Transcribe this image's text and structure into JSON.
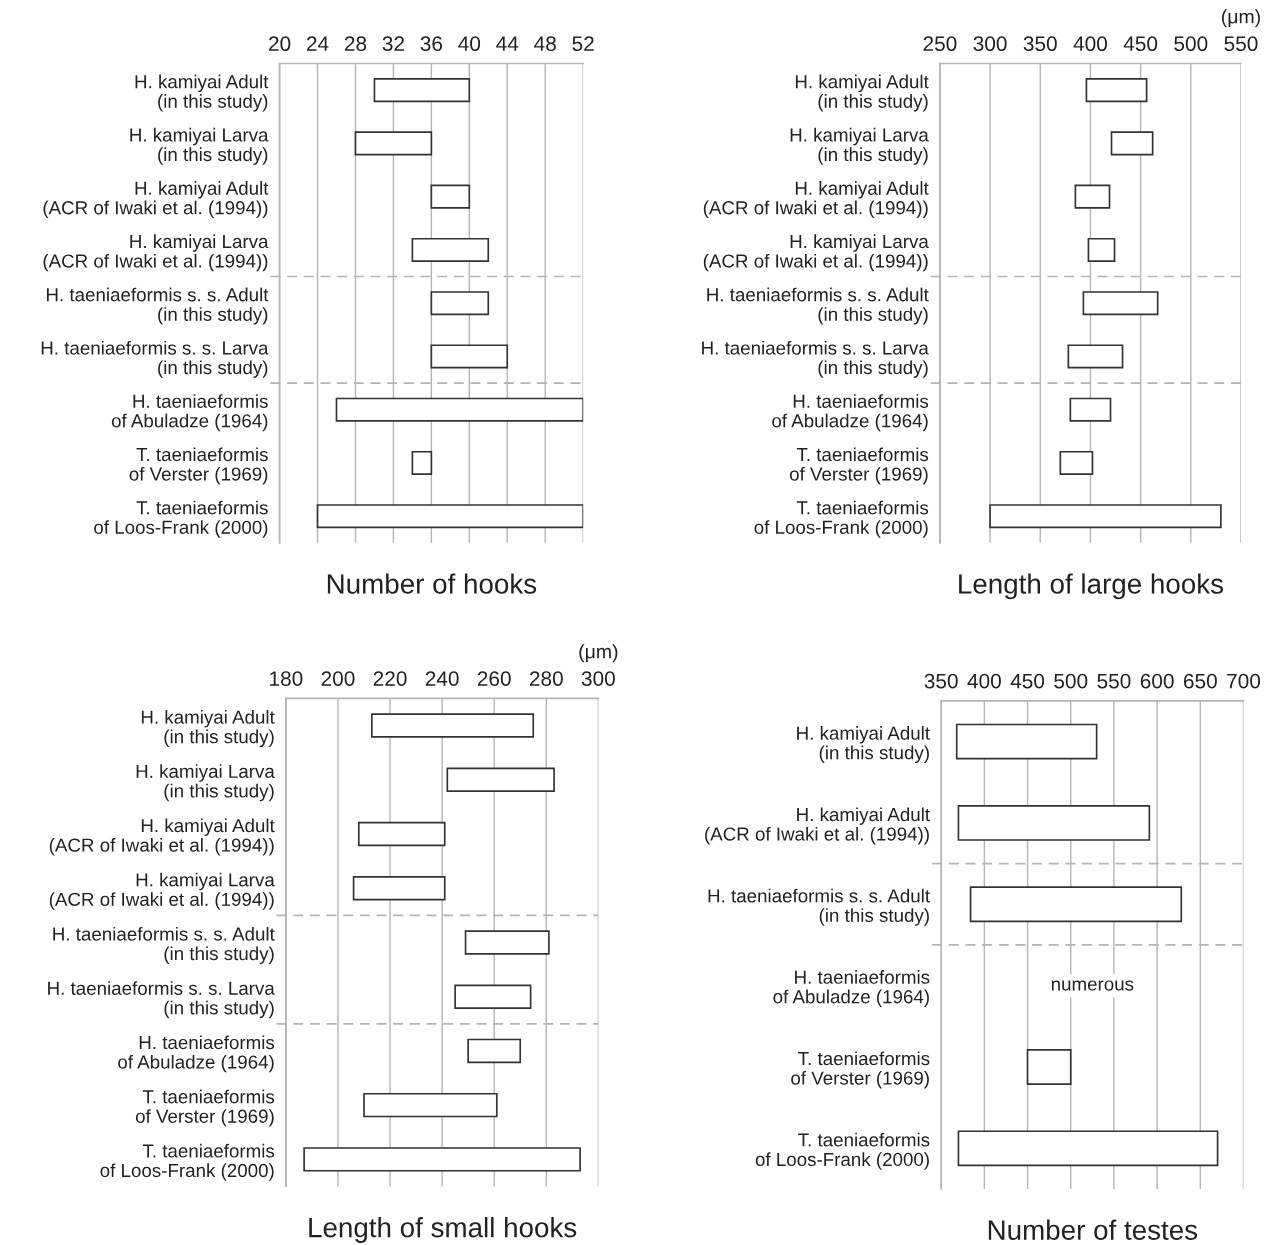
{
  "chart_data": [
    {
      "type": "bar",
      "orientation": "horizontal",
      "title": "Number of hooks",
      "categories": [
        "H. kamiyai Adult\n(in this study)",
        "H. kamiyai Larva\n(in this study)",
        "H. kamiyai Adult\n(ACR of Iwaki et al. (1994))",
        "H. kamiyai Larva\n(ACR of Iwaki et al. (1994))",
        "H. taeniaeformis s. s. Adult\n(in this study)",
        "H. taeniaeformis s. s. Larva\n(in this study)",
        "H. taeniaeformis\nof Abuladze (1964)",
        "T. taeniaeformis\nof Verster (1969)",
        "T. taeniaeformis\nof Loos-Frank (2000)"
      ],
      "base": [
        30,
        28,
        36,
        34,
        36,
        36,
        26,
        34,
        24
      ],
      "values": [
        10,
        8,
        4,
        8,
        6,
        8,
        26,
        2,
        28
      ],
      "color": "#ffffff",
      "xlim": [
        20,
        52
      ],
      "xticks": [
        20,
        24,
        28,
        32,
        36,
        40,
        44,
        48,
        52
      ],
      "grid": "x"
    },
    {
      "type": "bar",
      "orientation": "horizontal",
      "title": "Length of large hooks",
      "xlabel": "(μm)",
      "categories": [
        "H. kamiyai Adult\n(in this study)",
        "H. kamiyai Larva\n(in this study)",
        "H. kamiyai Adult\n(ACR of Iwaki et al. (1994))",
        "H. kamiyai Larva\n(ACR of Iwaki et al. (1994))",
        "H. taeniaeformis s. s. Adult\n(in this study)",
        "H. taeniaeformis s. s. Larva\n(in this study)",
        "H. taeniaeformis\nof Abuladze (1964)",
        "T. taeniaeformis\nof Verster (1969)",
        "T. taeniaeformis\nof Loos-Frank (2000)"
      ],
      "base": [
        396,
        421,
        385,
        398,
        393,
        378,
        380,
        370,
        300
      ],
      "values": [
        60,
        41,
        34,
        26,
        74,
        54,
        40,
        32,
        230
      ],
      "color": "#ffffff",
      "xlim": [
        250,
        550
      ],
      "xticks": [
        250,
        300,
        350,
        400,
        450,
        500,
        550
      ],
      "grid": "x"
    },
    {
      "type": "bar",
      "orientation": "horizontal",
      "title": "Length of small hooks",
      "xlabel": "(μm)",
      "categories": [
        "H. kamiyai Adult\n(in this study)",
        "H. kamiyai Larva\n(in this study)",
        "H. kamiyai Adult\n(ACR of Iwaki et al. (1994))",
        "H. kamiyai Larva\n(ACR of Iwaki et al. (1994))",
        "H. taeniaeformis s. s. Adult\n(in this study)",
        "H. taeniaeformis s. s. Larva\n(in this study)",
        "H. taeniaeformis\nof Abuladze (1964)",
        "T. taeniaeformis\nof Verster (1969)",
        "T. taeniaeformis\nof Loos-Frank (2000)"
      ],
      "base": [
        213,
        242,
        208,
        206,
        249,
        245,
        250,
        210,
        187
      ],
      "values": [
        62,
        41,
        33,
        35,
        32,
        29,
        20,
        51,
        106
      ],
      "color": "#ffffff",
      "xlim": [
        180,
        300
      ],
      "xticks": [
        180,
        200,
        220,
        240,
        260,
        280,
        300
      ],
      "grid": "x"
    },
    {
      "type": "bar",
      "orientation": "horizontal",
      "title": "Number of testes",
      "categories": [
        "H. kamiyai Adult\n(in this study)",
        "H. kamiyai Adult\n(ACR of Iwaki et al. (1994))",
        "H. taeniaeformis s. s. Adult\n(in this study)",
        "H. taeniaeformis\nof Abuladze (1964)",
        "T. taeniaeformis\nof Verster (1969)",
        "T. taeniaeformis\nof Loos-Frank (2000)"
      ],
      "base": [
        368,
        370,
        384,
        null,
        450,
        370
      ],
      "values": [
        162,
        221,
        244,
        null,
        50,
        300
      ],
      "color": "#ffffff",
      "xlim": [
        350,
        700
      ],
      "xticks": [
        350,
        400,
        450,
        500,
        550,
        600,
        650,
        700
      ],
      "grid": "x",
      "annotations": [
        "numerous"
      ]
    }
  ]
}
